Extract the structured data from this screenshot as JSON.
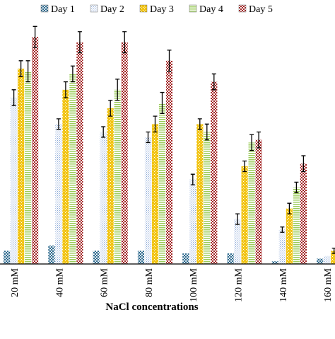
{
  "chart_data": {
    "type": "bar",
    "xlabel": "NaCl concentrations",
    "ylabel": "",
    "title": "",
    "categories": [
      "20 mM",
      "40 mM",
      "60 mM",
      "80 mM",
      "100 mM",
      "120 mM",
      "140 mM",
      "160 mM"
    ],
    "ylim": [
      0,
      100
    ],
    "grid": false,
    "legend_position": "top",
    "series": [
      {
        "name": "Day 1",
        "color": "#2f6b8f",
        "pattern": "dots",
        "values": [
          5,
          7,
          5,
          5,
          4,
          4,
          1,
          2
        ],
        "errors": [
          0.5,
          0.5,
          0.5,
          0.5,
          0.5,
          0.5,
          0.5,
          0.5
        ]
      },
      {
        "name": "Day 2",
        "color": "#8aa8d6",
        "pattern": "finedots",
        "values": [
          63,
          53,
          50,
          48,
          32,
          17,
          13,
          3
        ],
        "errors": [
          3,
          2,
          2,
          2,
          2,
          2,
          1,
          0.5
        ]
      },
      {
        "name": "Day 3",
        "color": "#f2c413",
        "pattern": "diagdots",
        "values": [
          74,
          66,
          59,
          53,
          53,
          37,
          21,
          5
        ],
        "errors": [
          3,
          3,
          3,
          3,
          2,
          2,
          2,
          1
        ]
      },
      {
        "name": "Day 4",
        "color": "#9ccc5c",
        "pattern": "hlines",
        "values": [
          73,
          72,
          66,
          61,
          50,
          46,
          29,
          9
        ],
        "errors": [
          4,
          3,
          4,
          4,
          3,
          3,
          2,
          1
        ]
      },
      {
        "name": "Day 5",
        "color": "#a32626",
        "pattern": "checker",
        "values": [
          86,
          84,
          84,
          77,
          69,
          47,
          38,
          15
        ],
        "errors": [
          4,
          4,
          4,
          4,
          3,
          3,
          3,
          1
        ]
      }
    ]
  }
}
